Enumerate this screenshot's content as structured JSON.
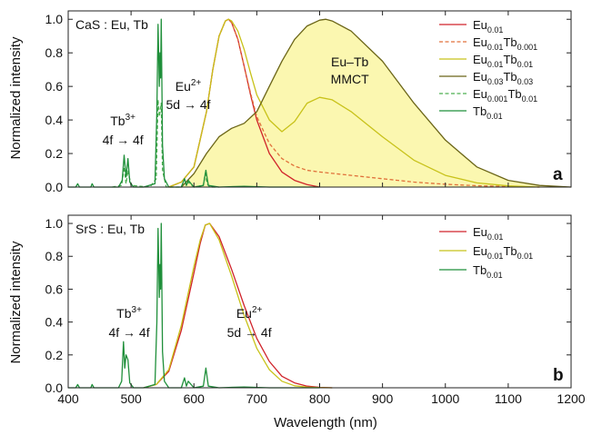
{
  "figure": {
    "shared_xlabel": "Wavelength (nm)",
    "shared_ylabel": "Normalized intensity",
    "x_ticks": [
      "400",
      "500",
      "600",
      "700",
      "800",
      "900",
      "1000",
      "1100",
      "1200"
    ],
    "y_ticks": [
      "0.0",
      "0.2",
      "0.4",
      "0.6",
      "0.8",
      "1.0"
    ]
  },
  "colors": {
    "eu": "#d0232a",
    "eu_tb_001": "#e0703a",
    "eu_tb_01": "#c8c21a",
    "eu3_tb3": "#6b6517",
    "eu0001_tb": "#4caf50",
    "tb": "#1f8f3a",
    "mmct_fill": "#fbf7b0"
  },
  "chart_data": [
    {
      "type": "line",
      "panel_label": "a",
      "sample": "CaS : Eu, Tb",
      "xlim": [
        400,
        1200
      ],
      "ylim": [
        0,
        1.05
      ],
      "xlabel": "",
      "ylabel": "Normalized intensity",
      "grid": false,
      "legend_position": "top-right",
      "legend": [
        {
          "base": "Eu",
          "sub": "0.01",
          "mid": "",
          "sub2": "",
          "style": "solid",
          "color_key": "eu"
        },
        {
          "base": "Eu",
          "sub": "0.01",
          "mid": "Tb",
          "sub2": "0.001",
          "style": "dashed",
          "color_key": "eu_tb_001"
        },
        {
          "base": "Eu",
          "sub": "0.01",
          "mid": "Tb",
          "sub2": "0.01",
          "style": "solid",
          "color_key": "eu_tb_01"
        },
        {
          "base": "Eu",
          "sub": "0.03",
          "mid": "Tb",
          "sub2": "0.03",
          "style": "solid",
          "color_key": "eu3_tb3"
        },
        {
          "base": "Eu",
          "sub": "0.001",
          "mid": "Tb",
          "sub2": "0.01",
          "style": "dashed",
          "color_key": "eu0001_tb"
        },
        {
          "base": "Tb",
          "sub": "0.01",
          "mid": "",
          "sub2": "",
          "style": "solid",
          "color_key": "tb"
        }
      ],
      "annotations": {
        "tb_ion": "Tb",
        "tb_charge": "3+",
        "tb_transition": "4f → 4f",
        "eu_ion": "Eu",
        "eu_charge": "2+",
        "eu_transition": "5d → 4f",
        "mmct_line1": "Eu–Tb",
        "mmct_line2": "MMCT"
      },
      "series": [
        {
          "name": "Eu0.01",
          "color_key": "eu",
          "dash": false,
          "x": [
            560,
            580,
            600,
            620,
            630,
            640,
            650,
            655,
            660,
            670,
            680,
            690,
            700,
            720,
            740,
            760,
            780,
            800
          ],
          "y": [
            0.0,
            0.03,
            0.12,
            0.45,
            0.7,
            0.9,
            0.99,
            1.0,
            0.98,
            0.88,
            0.72,
            0.55,
            0.4,
            0.2,
            0.09,
            0.04,
            0.015,
            0.0
          ]
        },
        {
          "name": "Eu0.01Tb0.001",
          "color_key": "eu_tb_001",
          "dash": true,
          "x": [
            560,
            580,
            600,
            620,
            630,
            640,
            650,
            655,
            660,
            670,
            680,
            690,
            700,
            720,
            740,
            760,
            780,
            800,
            850,
            900,
            950,
            1000,
            1050,
            1100,
            1150
          ],
          "y": [
            0.0,
            0.03,
            0.12,
            0.45,
            0.7,
            0.9,
            0.99,
            1.0,
            0.98,
            0.88,
            0.72,
            0.56,
            0.42,
            0.26,
            0.17,
            0.125,
            0.1,
            0.09,
            0.07,
            0.05,
            0.03,
            0.017,
            0.008,
            0.003,
            0.0
          ]
        },
        {
          "name": "Eu0.01Tb0.01",
          "color_key": "eu_tb_01",
          "dash": false,
          "x": [
            560,
            580,
            600,
            620,
            630,
            640,
            650,
            655,
            660,
            670,
            680,
            690,
            700,
            720,
            740,
            760,
            780,
            800,
            820,
            850,
            900,
            950,
            1000,
            1050,
            1100,
            1150
          ],
          "y": [
            0.0,
            0.03,
            0.12,
            0.45,
            0.7,
            0.9,
            0.99,
            1.0,
            0.99,
            0.93,
            0.82,
            0.68,
            0.55,
            0.4,
            0.33,
            0.39,
            0.5,
            0.535,
            0.52,
            0.45,
            0.3,
            0.16,
            0.07,
            0.025,
            0.007,
            0.0
          ]
        },
        {
          "name": "Eu0.03Tb0.03",
          "color_key": "eu3_tb3",
          "dash": false,
          "x": [
            580,
            600,
            620,
            640,
            660,
            680,
            700,
            720,
            740,
            760,
            780,
            800,
            810,
            820,
            850,
            900,
            950,
            1000,
            1050,
            1100,
            1150,
            1200
          ],
          "y": [
            0.0,
            0.08,
            0.2,
            0.3,
            0.35,
            0.38,
            0.45,
            0.6,
            0.75,
            0.88,
            0.96,
            0.995,
            1.0,
            0.99,
            0.93,
            0.75,
            0.5,
            0.28,
            0.12,
            0.04,
            0.01,
            0.0
          ]
        },
        {
          "name": "Eu0.001Tb0.01",
          "color_key": "eu0001_tb",
          "dash": true,
          "x": [
            470,
            485,
            489,
            492,
            495,
            500,
            530,
            540,
            543,
            545,
            548,
            550,
            556,
            580,
            585,
            588,
            591,
            600,
            615,
            618,
            621,
            625,
            640
          ],
          "y": [
            0.0,
            0.01,
            0.12,
            0.02,
            0.1,
            0.01,
            0.0,
            0.05,
            0.52,
            0.42,
            0.5,
            0.1,
            0.0,
            0.0,
            0.05,
            0.01,
            0.03,
            0.0,
            0.01,
            0.08,
            0.02,
            0.0,
            0.0
          ]
        },
        {
          "name": "Tb0.01",
          "color_key": "tb",
          "dash": false,
          "x": [
            400,
            412,
            415,
            418,
            436,
            438,
            441,
            480,
            486,
            489,
            492,
            495,
            498,
            504,
            520,
            538,
            541,
            543,
            545,
            546,
            547,
            548,
            550,
            553,
            560,
            580,
            585,
            588,
            591,
            600,
            615,
            619,
            623,
            640,
            680,
            720,
            800
          ],
          "y": [
            0.0,
            0.0,
            0.02,
            0.0,
            0.0,
            0.02,
            0.0,
            0.0,
            0.04,
            0.19,
            0.06,
            0.17,
            0.03,
            0.0,
            0.0,
            0.02,
            0.45,
            0.97,
            0.6,
            0.8,
            0.65,
            1.0,
            0.25,
            0.05,
            0.0,
            0.0,
            0.05,
            0.01,
            0.04,
            0.0,
            0.01,
            0.1,
            0.01,
            0.0,
            0.005,
            0.0,
            0.0
          ]
        }
      ],
      "mmct_fill_series": "Eu0.03Tb0.03"
    },
    {
      "type": "line",
      "panel_label": "b",
      "sample": "SrS : Eu, Tb",
      "xlim": [
        400,
        1200
      ],
      "ylim": [
        0,
        1.05
      ],
      "xlabel": "Wavelength (nm)",
      "ylabel": "Normalized intensity",
      "grid": false,
      "legend_position": "top-right",
      "legend": [
        {
          "base": "Eu",
          "sub": "0.01",
          "mid": "",
          "sub2": "",
          "style": "solid",
          "color_key": "eu"
        },
        {
          "base": "Eu",
          "sub": "0.01",
          "mid": "Tb",
          "sub2": "0.01",
          "style": "solid",
          "color_key": "eu_tb_01"
        },
        {
          "base": "Tb",
          "sub": "0.01",
          "mid": "",
          "sub2": "",
          "style": "solid",
          "color_key": "tb"
        }
      ],
      "annotations": {
        "tb_ion": "Tb",
        "tb_charge": "3+",
        "tb_transition": "4f → 4f",
        "eu_ion": "Eu",
        "eu_charge": "2+",
        "eu_transition": "5d → 4f"
      },
      "series": [
        {
          "name": "Eu0.01",
          "color_key": "eu",
          "dash": false,
          "x": [
            520,
            540,
            560,
            580,
            600,
            610,
            618,
            625,
            640,
            660,
            680,
            700,
            720,
            740,
            760,
            780,
            800,
            820
          ],
          "y": [
            0.0,
            0.02,
            0.1,
            0.35,
            0.7,
            0.88,
            0.99,
            1.0,
            0.92,
            0.72,
            0.5,
            0.3,
            0.16,
            0.07,
            0.03,
            0.01,
            0.003,
            0.0
          ]
        },
        {
          "name": "Eu0.01Tb0.01",
          "color_key": "eu_tb_01",
          "dash": false,
          "x": [
            520,
            540,
            560,
            580,
            600,
            610,
            618,
            625,
            640,
            660,
            680,
            700,
            720,
            740,
            760,
            780,
            800,
            820
          ],
          "y": [
            0.0,
            0.02,
            0.11,
            0.38,
            0.74,
            0.9,
            0.99,
            1.0,
            0.9,
            0.68,
            0.44,
            0.24,
            0.11,
            0.04,
            0.012,
            0.004,
            0.001,
            0.0
          ]
        },
        {
          "name": "Tb0.01",
          "color_key": "tb",
          "dash": false,
          "x": [
            400,
            412,
            415,
            418,
            436,
            438,
            441,
            480,
            485,
            488,
            490,
            492,
            495,
            498,
            504,
            520,
            538,
            541,
            543,
            545,
            546,
            547,
            548,
            550,
            553,
            560,
            580,
            585,
            588,
            591,
            600,
            615,
            619,
            623,
            640,
            680,
            720,
            800
          ],
          "y": [
            0.0,
            0.0,
            0.02,
            0.0,
            0.0,
            0.02,
            0.0,
            0.0,
            0.04,
            0.28,
            0.12,
            0.2,
            0.17,
            0.03,
            0.0,
            0.0,
            0.02,
            0.4,
            0.97,
            0.55,
            0.75,
            0.6,
            1.0,
            0.22,
            0.04,
            0.0,
            0.0,
            0.06,
            0.01,
            0.04,
            0.0,
            0.01,
            0.12,
            0.01,
            0.0,
            0.005,
            0.0,
            0.0
          ]
        }
      ]
    }
  ]
}
